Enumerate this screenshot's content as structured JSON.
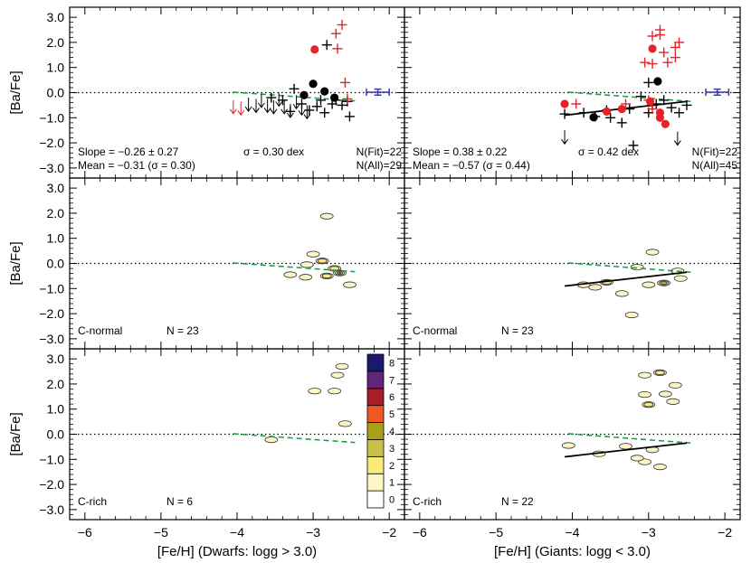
{
  "chart_data": {
    "type": "scatter",
    "xlim": [
      -6.2,
      -1.8
    ],
    "ylim": [
      -3.4,
      3.4
    ],
    "x_ticks": [
      -6,
      -5,
      -4,
      -3,
      -2
    ],
    "x_tick_labels": [
      "−6",
      "−5",
      "−4",
      "−3",
      "−2"
    ],
    "y_ticks": [
      -3,
      -2,
      -1,
      0,
      1,
      2,
      3
    ],
    "y_tick_labels": [
      "−3.0",
      "−2.0",
      "−1.0",
      "0.0",
      "1.0",
      "2.0",
      "3.0"
    ],
    "ylabel": "[Ba/Fe]",
    "xlabels": [
      "[Fe/H] (Dwarfs: logg > 3.0)",
      "[Fe/H] (Giants: logg < 3.0)"
    ],
    "colors": {
      "c_normal": "#000000",
      "c_rich": "#e8222a",
      "fit": "#000000",
      "trend": "#1aa04a",
      "errorbar": "#3a3aa8"
    },
    "panels": [
      {
        "id": "dwarfs-scatter",
        "kind": "scatter",
        "annotations": {
          "slope": "Slope = −0.26 ± 0.27",
          "mean": "Mean = −0.31 (σ = 0.30)",
          "sigma": "σ = 0.30 dex",
          "nfit": "N(Fit)=22",
          "nall": "N(All)=29"
        },
        "trend_line": [
          [
            -4.05,
            0.02
          ],
          [
            -2.45,
            -0.33
          ]
        ],
        "fit_line": [],
        "errorbar": {
          "x": -2.15,
          "y": 0.02,
          "xerr": 0.15,
          "yerr": 0.12
        },
        "cnormal_plus": [
          [
            -3.55,
            -0.2
          ],
          [
            -3.4,
            -0.3
          ],
          [
            -3.25,
            0.15
          ],
          [
            -3.15,
            -0.45
          ],
          [
            -3.05,
            -0.7
          ],
          [
            -2.95,
            -0.55
          ],
          [
            -2.9,
            -0.3
          ],
          [
            -2.85,
            -0.8
          ],
          [
            -2.75,
            -0.45
          ],
          [
            -2.7,
            -0.3
          ],
          [
            -2.62,
            -0.5
          ],
          [
            -2.55,
            -0.35
          ],
          [
            -2.52,
            -0.95
          ],
          [
            -2.82,
            1.9
          ],
          [
            -3.3,
            -0.75
          ]
        ],
        "cnormal_dots": [
          [
            -3.0,
            0.35
          ],
          [
            -2.85,
            0.05
          ],
          [
            -3.12,
            -0.1
          ],
          [
            -2.72,
            -0.2
          ]
        ],
        "crich_plus": [
          [
            -2.7,
            2.35
          ],
          [
            -2.62,
            2.7
          ],
          [
            -2.68,
            1.75
          ],
          [
            -2.58,
            0.4
          ],
          [
            -2.55,
            -0.25
          ]
        ],
        "crich_dots": [
          [
            -2.98,
            1.72
          ]
        ],
        "cnormal_upper": [
          [
            -3.85,
            -0.2
          ],
          [
            -3.75,
            -0.25
          ],
          [
            -3.68,
            -0.05
          ],
          [
            -3.6,
            -0.25
          ],
          [
            -3.52,
            -0.3
          ],
          [
            -3.45,
            0.0
          ],
          [
            -3.38,
            -0.3
          ],
          [
            -3.3,
            -0.45
          ],
          [
            -3.22,
            -0.1
          ],
          [
            -3.15,
            -0.35
          ],
          [
            -3.08,
            -0.5
          ]
        ],
        "crich_upper": [
          [
            -4.05,
            -0.3
          ],
          [
            -3.95,
            -0.35
          ]
        ],
        "contours": []
      },
      {
        "id": "giants-scatter",
        "kind": "scatter",
        "annotations": {
          "slope": "Slope = 0.38 ± 0.22",
          "mean": "Mean = −0.57 (σ = 0.44)",
          "sigma": "σ = 0.42 dex",
          "nfit": "N(Fit)=22",
          "nall": "N(All)=45"
        },
        "trend_line": [
          [
            -4.05,
            0.02
          ],
          [
            -2.45,
            -0.35
          ]
        ],
        "fit_line": [
          [
            -4.1,
            -0.9
          ],
          [
            -2.5,
            -0.35
          ]
        ],
        "errorbar": {
          "x": -2.1,
          "y": 0.02,
          "xerr": 0.15,
          "yerr": 0.12
        },
        "cnormal_plus": [
          [
            -4.1,
            -0.85
          ],
          [
            -3.85,
            -0.8
          ],
          [
            -3.7,
            -0.95
          ],
          [
            -3.55,
            -0.7
          ],
          [
            -3.5,
            -1.0
          ],
          [
            -3.35,
            -1.2
          ],
          [
            -3.25,
            -0.65
          ],
          [
            -3.1,
            -0.15
          ],
          [
            -3.0,
            -0.8
          ],
          [
            -2.95,
            -0.5
          ],
          [
            -2.9,
            -0.45
          ],
          [
            -2.8,
            -0.3
          ],
          [
            -2.7,
            -0.6
          ],
          [
            -2.6,
            -0.8
          ],
          [
            -2.5,
            -0.5
          ],
          [
            -3.0,
            0.4
          ],
          [
            -3.2,
            -2.1
          ]
        ],
        "cnormal_dots": [
          [
            -3.72,
            -0.98
          ],
          [
            -2.88,
            0.45
          ]
        ],
        "crich_plus": [
          [
            -2.85,
            2.5
          ],
          [
            -2.85,
            2.3
          ],
          [
            -2.95,
            2.25
          ],
          [
            -2.6,
            2.0
          ],
          [
            -2.65,
            1.8
          ],
          [
            -2.8,
            1.6
          ],
          [
            -3.05,
            1.2
          ],
          [
            -2.95,
            1.15
          ],
          [
            -2.75,
            1.2
          ],
          [
            -2.65,
            1.4
          ],
          [
            -3.95,
            -0.45
          ],
          [
            -3.0,
            -0.3
          ],
          [
            -2.95,
            -0.65
          ],
          [
            -3.3,
            -0.45
          ]
        ],
        "crich_dots": [
          [
            -4.1,
            -0.45
          ],
          [
            -3.55,
            -0.75
          ],
          [
            -3.35,
            -0.65
          ],
          [
            -2.95,
            1.75
          ],
          [
            -2.98,
            -0.35
          ],
          [
            -2.85,
            -0.8
          ],
          [
            -2.85,
            -1.0
          ],
          [
            -2.78,
            -1.25
          ]
        ],
        "cnormal_upper": [
          [
            -4.1,
            -1.5
          ],
          [
            -2.62,
            -1.55
          ]
        ],
        "crich_upper": [],
        "contours": []
      },
      {
        "id": "dwarfs-cnormal",
        "kind": "contour",
        "label": "C-normal",
        "nlabel": "N = 23",
        "trend_line": [
          [
            -4.05,
            0.02
          ],
          [
            -2.45,
            -0.33
          ]
        ],
        "fit_line": [],
        "contours": [
          [
            -2.82,
            1.88,
            1
          ],
          [
            -3.0,
            0.37,
            1
          ],
          [
            -2.88,
            0.1,
            2
          ],
          [
            -3.08,
            -0.05,
            1
          ],
          [
            -2.72,
            -0.2,
            2
          ],
          [
            -2.65,
            -0.38,
            4
          ],
          [
            -2.82,
            -0.5,
            2
          ],
          [
            -3.1,
            -0.55,
            1
          ],
          [
            -2.52,
            -0.85,
            1
          ],
          [
            -3.3,
            -0.45,
            1
          ]
        ]
      },
      {
        "id": "giants-cnormal",
        "kind": "contour",
        "label": "C-normal",
        "nlabel": "N = 23",
        "trend_line": [
          [
            -4.05,
            0.02
          ],
          [
            -2.45,
            -0.35
          ]
        ],
        "fit_line": [
          [
            -4.1,
            -0.9
          ],
          [
            -2.5,
            -0.35
          ]
        ],
        "contours": [
          [
            -2.95,
            0.45,
            1
          ],
          [
            -3.15,
            -0.15,
            1
          ],
          [
            -2.62,
            -0.3,
            1
          ],
          [
            -2.8,
            -0.78,
            3
          ],
          [
            -3.55,
            -0.75,
            2
          ],
          [
            -3.85,
            -0.85,
            1
          ],
          [
            -3.35,
            -1.2,
            1
          ],
          [
            -3.0,
            -0.85,
            1
          ],
          [
            -3.22,
            -2.05,
            1
          ],
          [
            -2.58,
            -0.6,
            1
          ],
          [
            -3.7,
            -0.95,
            1
          ]
        ]
      },
      {
        "id": "dwarfs-crich",
        "kind": "contour",
        "label": "C-rich",
        "nlabel": "N = 6",
        "trend_line": [
          [
            -4.05,
            0.02
          ],
          [
            -2.45,
            -0.33
          ]
        ],
        "fit_line": [],
        "contours": [
          [
            -2.62,
            2.7,
            1
          ],
          [
            -2.68,
            2.35,
            1
          ],
          [
            -2.98,
            1.72,
            1
          ],
          [
            -2.72,
            1.72,
            1
          ],
          [
            -2.58,
            0.42,
            1
          ],
          [
            -3.55,
            -0.22,
            1
          ]
        ]
      },
      {
        "id": "giants-crich",
        "kind": "contour",
        "label": "C-rich",
        "nlabel": "N = 22",
        "trend_line": [
          [
            -4.05,
            0.02
          ],
          [
            -2.45,
            -0.35
          ]
        ],
        "fit_line": [
          [
            -4.1,
            -0.9
          ],
          [
            -2.5,
            -0.35
          ]
        ],
        "contours": [
          [
            -2.85,
            2.45,
            2
          ],
          [
            -3.05,
            2.35,
            1
          ],
          [
            -2.65,
            1.95,
            1
          ],
          [
            -2.78,
            1.6,
            1
          ],
          [
            -3.05,
            1.58,
            1
          ],
          [
            -2.68,
            1.3,
            1
          ],
          [
            -3.0,
            1.18,
            2
          ],
          [
            -4.05,
            -0.45,
            1
          ],
          [
            -3.65,
            -0.78,
            1
          ],
          [
            -2.95,
            -0.62,
            1
          ],
          [
            -3.3,
            -0.48,
            1
          ],
          [
            -3.05,
            -1.1,
            1
          ],
          [
            -2.85,
            -1.3,
            1
          ],
          [
            -3.15,
            -0.95,
            1
          ]
        ]
      }
    ],
    "colorbar": {
      "levels": [
        0,
        1,
        2,
        3,
        4,
        5,
        6,
        7,
        8
      ],
      "labels": [
        "0",
        "1",
        "2",
        "3",
        "4",
        "5",
        "6",
        "7",
        "8"
      ],
      "colors": [
        "#ffffff",
        "#fdf5c4",
        "#fce97a",
        "#c9c04a",
        "#aaa018",
        "#ef5a24",
        "#a51e2a",
        "#62257c",
        "#1d1a6e"
      ]
    }
  }
}
